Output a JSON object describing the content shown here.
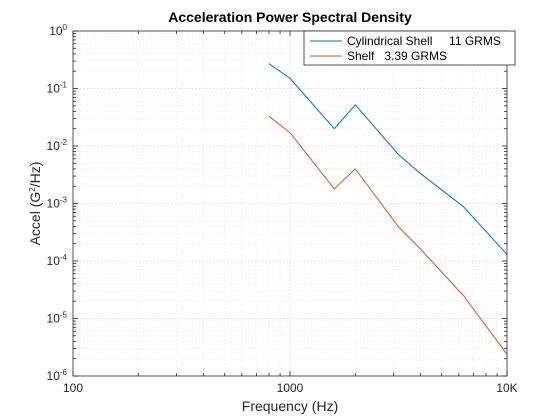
{
  "chart_data": {
    "type": "line",
    "title": "Acceleration Power Spectral Density",
    "xlabel": "Frequency (Hz)",
    "ylabel": {
      "prefix": "Accel (G",
      "sup": "2",
      "suffix": "/Hz)"
    },
    "xscale": "log",
    "yscale": "log",
    "xlim": [
      100,
      10000
    ],
    "ylim": [
      1e-06,
      1
    ],
    "grid": true,
    "minor_grid": true,
    "legend_position": "top-right",
    "x_tick_labels": [
      {
        "value": 100,
        "label": "100"
      },
      {
        "value": 1000,
        "label": "1000"
      },
      {
        "value": 10000,
        "label": "10K"
      }
    ],
    "y_tick_labels": [
      {
        "value": 1,
        "base": "10",
        "exp": "0"
      },
      {
        "value": 0.1,
        "base": "10",
        "exp": "-1"
      },
      {
        "value": 0.01,
        "base": "10",
        "exp": "-2"
      },
      {
        "value": 0.001,
        "base": "10",
        "exp": "-3"
      },
      {
        "value": 0.0001,
        "base": "10",
        "exp": "-4"
      },
      {
        "value": 1e-05,
        "base": "10",
        "exp": "-5"
      },
      {
        "value": 1e-06,
        "base": "10",
        "exp": "-6"
      }
    ],
    "series": [
      {
        "name": "Cylindrical Shell     11 GRMS",
        "color": "#0072BD",
        "x": [
          800,
          1000,
          1600,
          2000,
          3150,
          4000,
          6300,
          10000
        ],
        "y": [
          0.27,
          0.15,
          0.02,
          0.052,
          0.0072,
          0.0033,
          0.00088,
          0.00013
        ]
      },
      {
        "name": "Shelf   3.39 GRMS",
        "color": "#D95319",
        "x": [
          800,
          1000,
          1600,
          2000,
          3150,
          4000,
          6300,
          10000
        ],
        "y": [
          0.033,
          0.017,
          0.0018,
          0.004,
          0.0004,
          0.00016,
          2.5e-05,
          2.4e-06
        ]
      }
    ]
  }
}
